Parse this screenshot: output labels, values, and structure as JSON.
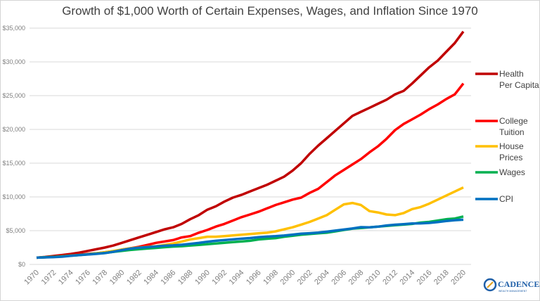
{
  "chart_data": {
    "type": "line",
    "title": "Growth of $1,000 Worth of  Certain Expenses, Wages, and Inflation Since 1970",
    "xlabel": "",
    "ylabel": "",
    "x": [
      1970,
      1971,
      1972,
      1973,
      1974,
      1975,
      1976,
      1977,
      1978,
      1979,
      1980,
      1981,
      1982,
      1983,
      1984,
      1985,
      1986,
      1987,
      1988,
      1989,
      1990,
      1991,
      1992,
      1993,
      1994,
      1995,
      1996,
      1997,
      1998,
      1999,
      2000,
      2001,
      2002,
      2003,
      2004,
      2005,
      2006,
      2007,
      2008,
      2009,
      2010,
      2011,
      2012,
      2013,
      2014,
      2015,
      2016,
      2017,
      2018,
      2019,
      2020
    ],
    "x_tick_labels": [
      "1970",
      "1972",
      "1974",
      "1976",
      "1978",
      "1980",
      "1982",
      "1984",
      "1986",
      "1988",
      "1990",
      "1992",
      "1994",
      "1996",
      "1998",
      "2000",
      "2002",
      "2004",
      "2006",
      "2008",
      "2010",
      "2012",
      "2014",
      "2016",
      "2018",
      "2020"
    ],
    "ylim": [
      0,
      35000
    ],
    "y_tick_labels": [
      "$0",
      "$5,000",
      "$10,000",
      "$15,000",
      "$20,000",
      "$25,000",
      "$30,000",
      "$35,000"
    ],
    "grid": true,
    "legend_position": "right",
    "series": [
      {
        "name": "Health Per Capita",
        "name_lines": [
          "Health",
          "Per Capita"
        ],
        "color": "#c00000",
        "values": [
          1000,
          1100,
          1250,
          1400,
          1550,
          1750,
          2000,
          2250,
          2500,
          2800,
          3200,
          3600,
          4000,
          4400,
          4800,
          5200,
          5500,
          6000,
          6700,
          7300,
          8100,
          8600,
          9300,
          9900,
          10300,
          10800,
          11300,
          11800,
          12400,
          13000,
          13900,
          15000,
          16400,
          17600,
          18700,
          19800,
          20900,
          22000,
          22600,
          23200,
          23800,
          24400,
          25200,
          25700,
          26800,
          28000,
          29200,
          30200,
          31500,
          32800,
          34500
        ]
      },
      {
        "name": "College Tuition",
        "name_lines": [
          "College",
          "Tuition"
        ],
        "color": "#ff0000",
        "values": [
          1000,
          1050,
          1150,
          1250,
          1350,
          1450,
          1550,
          1650,
          1800,
          1950,
          2200,
          2400,
          2600,
          2900,
          3200,
          3400,
          3600,
          4000,
          4200,
          4700,
          5100,
          5600,
          6000,
          6500,
          7000,
          7400,
          7800,
          8300,
          8800,
          9200,
          9600,
          9900,
          10600,
          11200,
          12200,
          13200,
          14000,
          14800,
          15600,
          16600,
          17500,
          18600,
          19900,
          20800,
          21500,
          22200,
          23000,
          23700,
          24500,
          25200,
          26800
        ]
      },
      {
        "name": "House Prices",
        "name_lines": [
          "House",
          "Prices"
        ],
        "color": "#ffc000",
        "values": [
          1000,
          1050,
          1100,
          1200,
          1300,
          1400,
          1500,
          1650,
          1800,
          2000,
          2200,
          2400,
          2500,
          2600,
          2700,
          2900,
          3100,
          3400,
          3700,
          3900,
          4100,
          4100,
          4200,
          4300,
          4400,
          4500,
          4600,
          4700,
          4900,
          5200,
          5500,
          5900,
          6300,
          6800,
          7300,
          8100,
          8900,
          9100,
          8800,
          7900,
          7700,
          7400,
          7300,
          7600,
          8200,
          8500,
          9000,
          9600,
          10200,
          10800,
          11400
        ]
      },
      {
        "name": "Wages",
        "name_lines": [
          "Wages"
        ],
        "color": "#00b050",
        "values": [
          1000,
          1060,
          1120,
          1200,
          1300,
          1400,
          1500,
          1600,
          1700,
          1850,
          2000,
          2150,
          2250,
          2350,
          2450,
          2550,
          2650,
          2700,
          2800,
          2900,
          3000,
          3100,
          3200,
          3300,
          3400,
          3500,
          3700,
          3800,
          3900,
          4100,
          4250,
          4400,
          4500,
          4600,
          4700,
          4900,
          5100,
          5300,
          5400,
          5500,
          5600,
          5700,
          5800,
          5900,
          6000,
          6200,
          6300,
          6500,
          6700,
          6800,
          7100
        ]
      },
      {
        "name": "CPI",
        "name_lines": [
          "CPI"
        ],
        "color": "#0070c0",
        "values": [
          1000,
          1040,
          1080,
          1150,
          1270,
          1390,
          1470,
          1560,
          1680,
          1870,
          2120,
          2340,
          2480,
          2560,
          2670,
          2770,
          2820,
          2920,
          3040,
          3190,
          3360,
          3500,
          3600,
          3710,
          3810,
          3910,
          4030,
          4120,
          4190,
          4280,
          4420,
          4550,
          4620,
          4720,
          4850,
          5010,
          5170,
          5320,
          5520,
          5500,
          5590,
          5770,
          5890,
          5970,
          6070,
          6080,
          6150,
          6280,
          6430,
          6550,
          6630
        ]
      }
    ]
  },
  "logo": {
    "name": "CADENCE",
    "tagline": "WEALTH MANAGEMENT"
  }
}
